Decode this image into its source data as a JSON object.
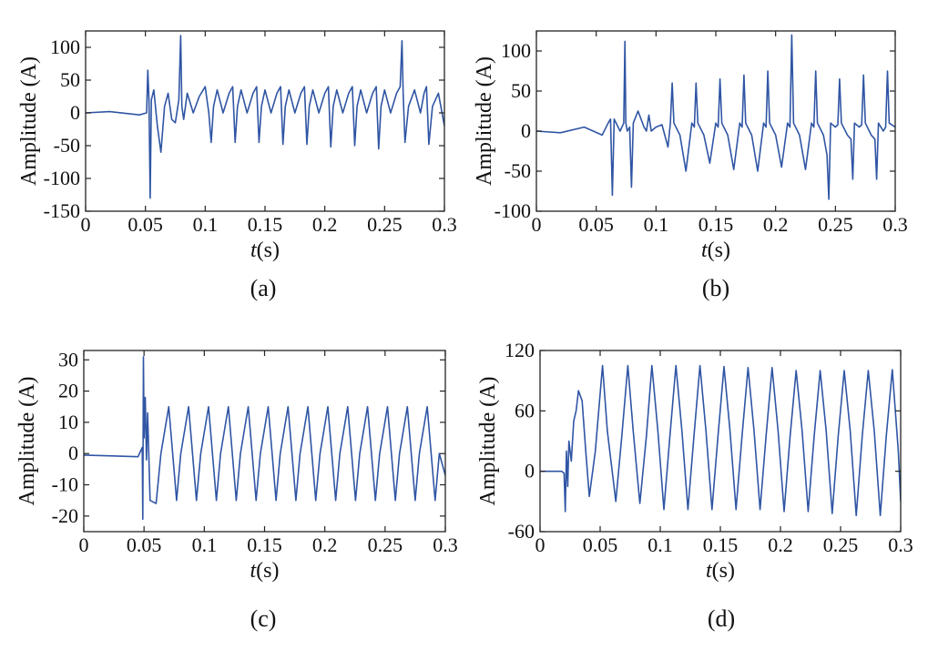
{
  "figure": {
    "line_color": "#2f55a4"
  },
  "chart_data": [
    {
      "type": "line",
      "caption": "(a)",
      "xlabel": "t (s)",
      "ylabel": "Amplitude (A)",
      "xlim": [
        0,
        0.3
      ],
      "ylim": [
        -150,
        125
      ],
      "xticks": [
        0,
        0.05,
        0.1,
        0.15,
        0.2,
        0.25,
        0.3
      ],
      "xtick_labels": [
        "0",
        "0.05",
        "0.1",
        "0.15",
        "0.2",
        "0.25",
        "0.3"
      ],
      "yticks": [
        100,
        50,
        0,
        -50,
        -100,
        -150
      ],
      "ytick_labels": [
        "100",
        "50",
        "0",
        "-50",
        "-100",
        "-150"
      ],
      "grid": false,
      "series": [
        {
          "x": [
            0,
            0.02,
            0.045,
            0.051,
            0.052,
            0.053,
            0.054,
            0.055,
            0.057,
            0.06,
            0.063,
            0.066,
            0.069,
            0.072,
            0.075,
            0.078,
            0.0795,
            0.0805,
            0.082,
            0.085,
            0.09,
            0.095,
            0.1,
            0.103,
            0.105,
            0.107,
            0.11,
            0.115,
            0.12,
            0.123,
            0.125,
            0.127,
            0.13,
            0.135,
            0.14,
            0.143,
            0.145,
            0.147,
            0.15,
            0.155,
            0.16,
            0.163,
            0.165,
            0.167,
            0.17,
            0.175,
            0.18,
            0.183,
            0.185,
            0.187,
            0.19,
            0.195,
            0.2,
            0.203,
            0.205,
            0.207,
            0.21,
            0.215,
            0.22,
            0.223,
            0.225,
            0.227,
            0.23,
            0.235,
            0.24,
            0.243,
            0.245,
            0.247,
            0.25,
            0.255,
            0.26,
            0.263,
            0.2645,
            0.2655,
            0.267,
            0.27,
            0.275,
            0.28,
            0.283,
            0.285,
            0.287,
            0.29,
            0.295,
            0.3
          ],
          "y": [
            0,
            2,
            -3,
            0,
            65,
            20,
            -130,
            20,
            35,
            -20,
            -60,
            10,
            30,
            -10,
            -15,
            20,
            118,
            10,
            -10,
            30,
            0,
            25,
            40,
            0,
            -45,
            10,
            35,
            0,
            30,
            40,
            -45,
            10,
            35,
            0,
            30,
            40,
            -45,
            10,
            35,
            0,
            30,
            40,
            -48,
            10,
            35,
            0,
            30,
            40,
            -48,
            10,
            35,
            0,
            30,
            40,
            -52,
            10,
            35,
            0,
            30,
            40,
            -50,
            10,
            35,
            0,
            30,
            40,
            -55,
            10,
            35,
            0,
            30,
            40,
            110,
            30,
            -45,
            10,
            35,
            0,
            30,
            40,
            -48,
            10,
            30,
            -20
          ]
        }
      ]
    },
    {
      "type": "line",
      "caption": "(b)",
      "xlabel": "t (s)",
      "ylabel": "Amplitude (A)",
      "xlim": [
        0,
        0.3
      ],
      "ylim": [
        -100,
        125
      ],
      "xticks": [
        0,
        0.05,
        0.1,
        0.15,
        0.2,
        0.25,
        0.3
      ],
      "xtick_labels": [
        "0",
        "0.05",
        "0.1",
        "0.15",
        "0.2",
        "0.25",
        "0.3"
      ],
      "yticks": [
        100,
        50,
        0,
        -50,
        -100
      ],
      "ytick_labels": [
        "100",
        "50",
        "0",
        "-50",
        "-100"
      ],
      "grid": false,
      "series": [
        {
          "x": [
            0,
            0.02,
            0.04,
            0.055,
            0.06,
            0.062,
            0.0635,
            0.065,
            0.07,
            0.073,
            0.074,
            0.0748,
            0.076,
            0.078,
            0.0795,
            0.081,
            0.085,
            0.09,
            0.092,
            0.094,
            0.096,
            0.1,
            0.105,
            0.11,
            0.112,
            0.1135,
            0.115,
            0.12,
            0.125,
            0.13,
            0.132,
            0.1335,
            0.135,
            0.14,
            0.145,
            0.15,
            0.152,
            0.1535,
            0.155,
            0.16,
            0.165,
            0.17,
            0.172,
            0.1735,
            0.175,
            0.18,
            0.185,
            0.19,
            0.192,
            0.1935,
            0.195,
            0.2,
            0.205,
            0.21,
            0.212,
            0.2135,
            0.215,
            0.22,
            0.225,
            0.23,
            0.232,
            0.2335,
            0.235,
            0.24,
            0.243,
            0.2445,
            0.246,
            0.25,
            0.252,
            0.2535,
            0.255,
            0.26,
            0.263,
            0.2645,
            0.266,
            0.27,
            0.272,
            0.2735,
            0.275,
            0.28,
            0.283,
            0.2845,
            0.286,
            0.29,
            0.292,
            0.2935,
            0.295,
            0.3
          ],
          "y": [
            0,
            -2,
            5,
            -5,
            10,
            15,
            -80,
            15,
            0,
            10,
            112,
            10,
            0,
            5,
            -70,
            10,
            25,
            5,
            0,
            20,
            0,
            5,
            8,
            -20,
            10,
            60,
            10,
            -5,
            -50,
            10,
            5,
            60,
            10,
            -5,
            -40,
            10,
            5,
            65,
            10,
            -5,
            -48,
            10,
            5,
            70,
            10,
            -5,
            -50,
            10,
            5,
            75,
            10,
            -5,
            -45,
            10,
            5,
            120,
            10,
            -5,
            -48,
            10,
            5,
            75,
            10,
            -5,
            -30,
            -85,
            10,
            5,
            8,
            65,
            10,
            -5,
            -10,
            -60,
            10,
            5,
            8,
            70,
            10,
            -5,
            -10,
            -60,
            10,
            0,
            5,
            75,
            10,
            5
          ]
        }
      ]
    },
    {
      "type": "line",
      "caption": "(c)",
      "xlabel": "t (s)",
      "ylabel": "Amplitude (A)",
      "xlim": [
        0,
        0.3
      ],
      "ylim": [
        -25,
        33
      ],
      "xticks": [
        0,
        0.05,
        0.1,
        0.15,
        0.2,
        0.25,
        0.3
      ],
      "xtick_labels": [
        "0",
        "0.05",
        "0.1",
        "0.15",
        "0.2",
        "0.25",
        "0.3"
      ],
      "yticks": [
        30,
        20,
        10,
        0,
        -10,
        -20
      ],
      "ytick_labels": [
        "30",
        "20",
        "10",
        "0",
        "-10",
        "-20"
      ],
      "grid": false,
      "series": [
        {
          "x": [
            0,
            0.045,
            0.0485,
            0.049,
            0.0495,
            0.05,
            0.051,
            0.052,
            0.053,
            0.055,
            0.06,
            0.064,
            0.0705,
            0.077,
            0.0805,
            0.087,
            0.0935,
            0.097,
            0.1035,
            0.11,
            0.1135,
            0.12,
            0.1265,
            0.13,
            0.1365,
            0.143,
            0.1465,
            0.153,
            0.1595,
            0.163,
            0.1695,
            0.176,
            0.1795,
            0.186,
            0.1925,
            0.196,
            0.2025,
            0.209,
            0.2125,
            0.219,
            0.2255,
            0.229,
            0.2355,
            0.242,
            0.2455,
            0.252,
            0.2585,
            0.262,
            0.2685,
            0.275,
            0.2785,
            0.285,
            0.2915,
            0.295,
            0.3
          ],
          "y": [
            -0.5,
            -1,
            2,
            -21,
            31,
            5,
            18,
            -2,
            13,
            -15,
            -16,
            0,
            15,
            -15,
            0,
            15,
            -15,
            0,
            15,
            -15,
            0,
            15,
            -15,
            0,
            15,
            -15,
            0,
            15,
            -15,
            0,
            15,
            -15,
            0,
            15,
            -15,
            0,
            15,
            -15,
            0,
            15,
            -15,
            0,
            15,
            -15,
            0,
            15,
            -15,
            0,
            15,
            -15,
            0,
            15,
            -15,
            0,
            -7
          ]
        }
      ]
    },
    {
      "type": "line",
      "caption": "(d)",
      "xlabel": "t (s)",
      "ylabel": "Amplitude (A)",
      "xlim": [
        0,
        0.3
      ],
      "ylim": [
        -60,
        120
      ],
      "xticks": [
        0,
        0.05,
        0.1,
        0.15,
        0.2,
        0.25,
        0.3
      ],
      "xtick_labels": [
        "0",
        "0.05",
        "0.1",
        "0.15",
        "0.2",
        "0.25",
        "0.3"
      ],
      "yticks": [
        120,
        60,
        0,
        -60
      ],
      "ytick_labels": [
        "120",
        "60",
        "0",
        "-60"
      ],
      "grid": false,
      "series": [
        {
          "x": [
            0,
            0.018,
            0.02,
            0.021,
            0.022,
            0.023,
            0.024,
            0.026,
            0.028,
            0.03,
            0.032,
            0.035,
            0.038,
            0.041,
            0.046,
            0.052,
            0.056,
            0.063,
            0.068,
            0.073,
            0.0775,
            0.083,
            0.0885,
            0.093,
            0.098,
            0.103,
            0.108,
            0.113,
            0.118,
            0.123,
            0.128,
            0.133,
            0.138,
            0.143,
            0.148,
            0.153,
            0.158,
            0.163,
            0.168,
            0.173,
            0.178,
            0.183,
            0.188,
            0.193,
            0.198,
            0.203,
            0.208,
            0.213,
            0.218,
            0.223,
            0.228,
            0.233,
            0.238,
            0.243,
            0.248,
            0.253,
            0.258,
            0.263,
            0.268,
            0.273,
            0.278,
            0.283,
            0.288,
            0.293,
            0.298,
            0.3
          ],
          "y": [
            0,
            0,
            -2,
            -40,
            20,
            -15,
            30,
            10,
            50,
            60,
            80,
            70,
            20,
            -25,
            20,
            105,
            40,
            -30,
            35,
            105,
            40,
            -32,
            35,
            105,
            40,
            -38,
            35,
            105,
            40,
            -38,
            35,
            105,
            40,
            -38,
            35,
            104,
            40,
            -38,
            35,
            103,
            40,
            -38,
            35,
            103,
            40,
            -40,
            35,
            100,
            40,
            -40,
            35,
            100,
            40,
            -42,
            35,
            100,
            40,
            -44,
            35,
            100,
            40,
            -44,
            35,
            101,
            20,
            -30
          ]
        }
      ]
    }
  ]
}
